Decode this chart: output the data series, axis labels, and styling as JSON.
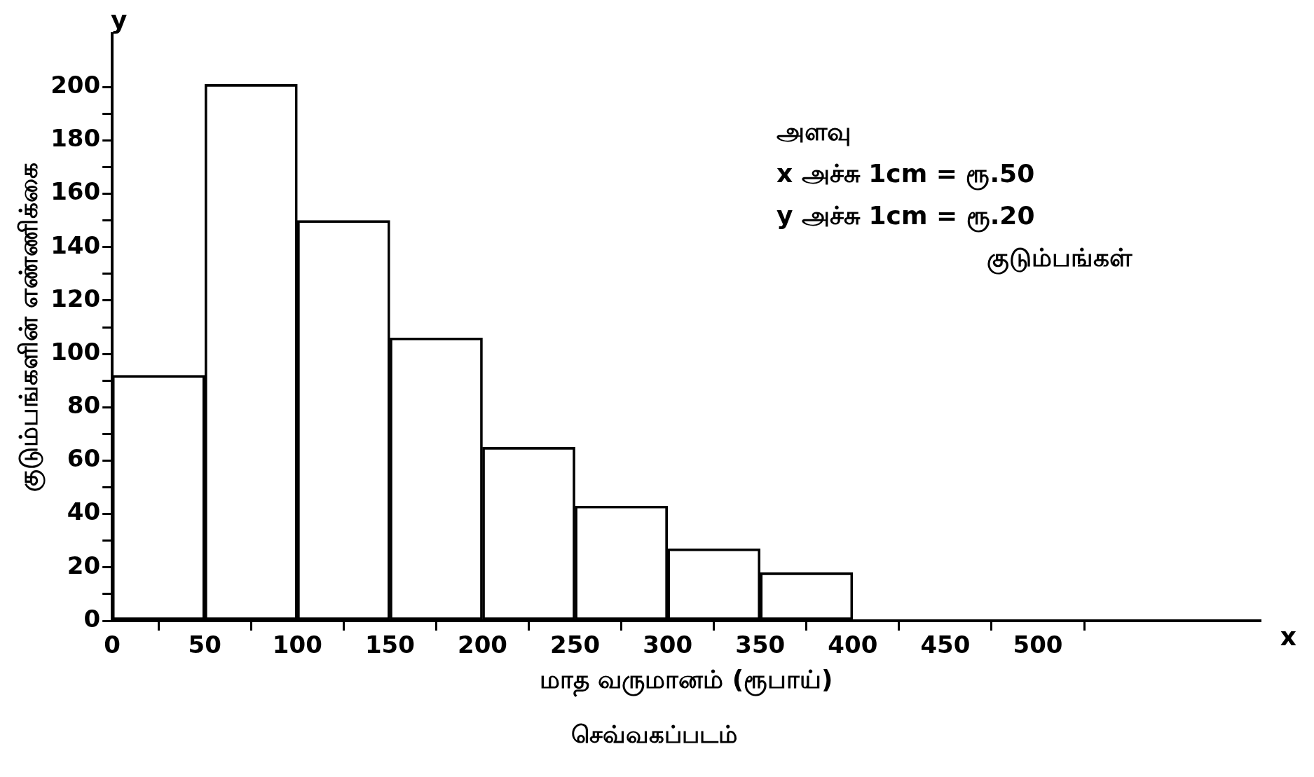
{
  "chart_data": {
    "type": "histogram",
    "xlabel": "மாத வருமானம் (ரூபாய்)",
    "ylabel": "குடும்பங்களின் எண்ணிக்கை",
    "annotations": [
      "அளவு",
      "x அச்சு 1cm = ரூ.50",
      "y அச்சு 1cm = ரூ.20",
      "குடும்பங்கள்",
      "செவ்வகப்படம்",
      "x",
      "y"
    ],
    "bins": [
      0,
      50,
      100,
      150,
      200,
      250,
      300,
      350,
      400
    ],
    "values": [
      92,
      201,
      150,
      106,
      65,
      43,
      27,
      18
    ],
    "color": "#000000",
    "xlim": [
      0,
      620
    ],
    "xticks": [
      0,
      50,
      100,
      150,
      200,
      250,
      300,
      350,
      400,
      450,
      500
    ],
    "ylim": [
      0,
      220
    ],
    "yticks": [
      0,
      {
        "value": 10,
        "label": null
      },
      20,
      {
        "value": 30,
        "label": null
      },
      40,
      {
        "value": 50,
        "label": null
      },
      60,
      {
        "value": 70,
        "label": null
      },
      80,
      {
        "value": 90,
        "label": null
      },
      100,
      {
        "value": 110,
        "label": null
      },
      120,
      {
        "value": 130,
        "label": null
      },
      140,
      {
        "value": 150,
        "label": null
      },
      160,
      {
        "value": 170,
        "label": null
      },
      180,
      {
        "value": 190,
        "label": null
      },
      200
    ],
    "grid": false
  }
}
